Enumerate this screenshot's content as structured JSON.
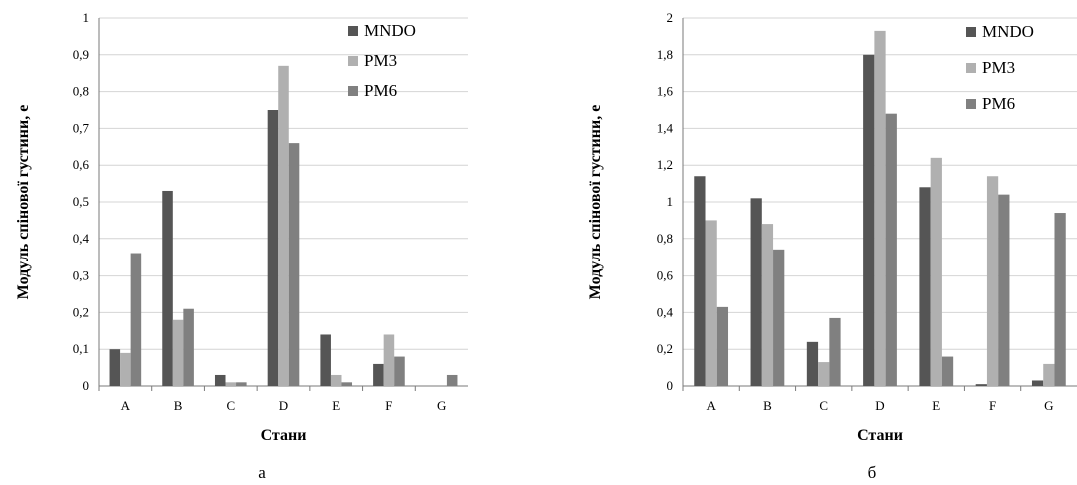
{
  "chart_data": [
    {
      "type": "bar",
      "panel_label": "а",
      "title": "",
      "xlabel": "Стани",
      "ylabel": "Модуль спінової густини, е",
      "categories": [
        "A",
        "B",
        "C",
        "D",
        "E",
        "F",
        "G"
      ],
      "ylim": [
        0,
        1
      ],
      "yticks": [
        "0",
        "0,1",
        "0,2",
        "0,3",
        "0,4",
        "0,5",
        "0,6",
        "0,7",
        "0,8",
        "0,9",
        "1"
      ],
      "yticks_values": [
        0,
        0.1,
        0.2,
        0.3,
        0.4,
        0.5,
        0.6,
        0.7,
        0.8,
        0.9,
        1.0
      ],
      "grid": "horizontal",
      "legend": "top-right",
      "series": [
        {
          "name": "MNDO",
          "values": [
            0.1,
            0.53,
            0.03,
            0.75,
            0.14,
            0.06,
            0.0
          ]
        },
        {
          "name": "PM3",
          "values": [
            0.09,
            0.18,
            0.01,
            0.87,
            0.03,
            0.14,
            0.0
          ]
        },
        {
          "name": "PM6",
          "values": [
            0.36,
            0.21,
            0.01,
            0.66,
            0.01,
            0.08,
            0.03
          ]
        }
      ]
    },
    {
      "type": "bar",
      "panel_label": "б",
      "title": "",
      "xlabel": "Стани",
      "ylabel": "Модуль спінової густини, е",
      "categories": [
        "A",
        "B",
        "C",
        "D",
        "E",
        "F",
        "G"
      ],
      "ylim": [
        0,
        2
      ],
      "yticks": [
        "0",
        "0,2",
        "0,4",
        "0,6",
        "0,8",
        "1",
        "1,2",
        "1,4",
        "1,6",
        "1,8",
        "2"
      ],
      "yticks_values": [
        0,
        0.2,
        0.4,
        0.6,
        0.8,
        1.0,
        1.2,
        1.4,
        1.6,
        1.8,
        2.0
      ],
      "grid": "horizontal",
      "legend": "top-right",
      "series": [
        {
          "name": "MNDO",
          "values": [
            1.14,
            1.02,
            0.24,
            1.8,
            1.08,
            0.01,
            0.03
          ]
        },
        {
          "name": "PM3",
          "values": [
            0.9,
            0.88,
            0.13,
            1.93,
            1.24,
            1.14,
            0.12
          ]
        },
        {
          "name": "PM6",
          "values": [
            0.43,
            0.74,
            0.37,
            1.48,
            0.16,
            1.04,
            0.94
          ]
        }
      ]
    }
  ],
  "colors": {
    "MNDO": "#555555",
    "PM3": "#b0b0b0",
    "PM6": "#808080",
    "grid": "#d4d4d4",
    "axis": "#7a7a7a"
  }
}
